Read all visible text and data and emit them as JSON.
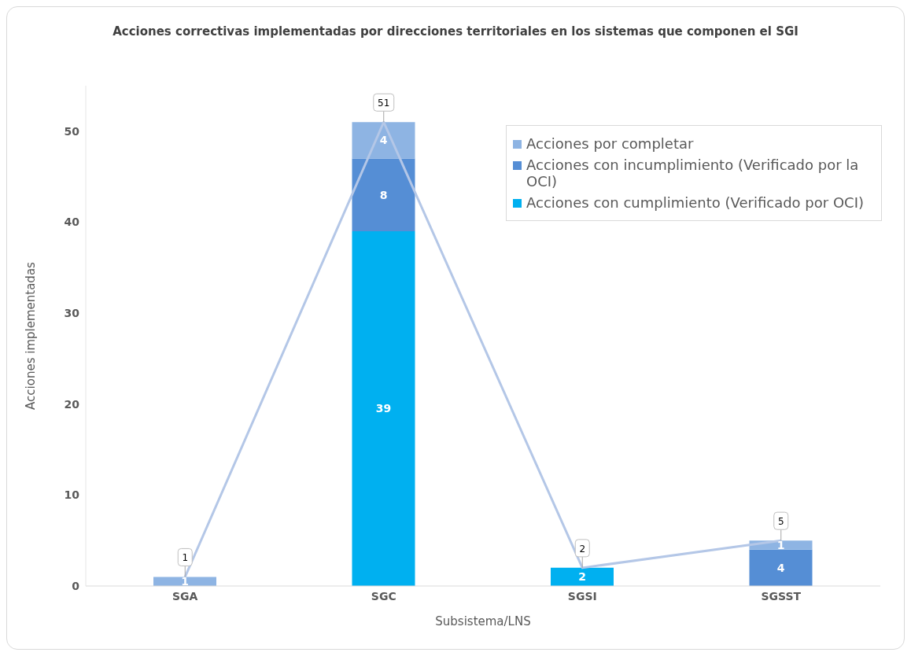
{
  "chart_data": {
    "type": "bar",
    "stacked": true,
    "title": "Acciones correctivas implementadas por direcciones territoriales en los sistemas que componen el SGI",
    "xlabel": "Subsistema/LNS",
    "ylabel": "Acciones implementadas",
    "categories": [
      "SGA",
      "SGC",
      "SGSI",
      "SGSST"
    ],
    "series": [
      {
        "name": "Acciones con cumplimiento (Verificado por OCI)",
        "color": "#00b0f0",
        "values": [
          null,
          39,
          2,
          null
        ]
      },
      {
        "name": "Acciones con incumplimiento (Verificado por la OCI)",
        "color": "#558ed5",
        "values": [
          null,
          8,
          null,
          4
        ]
      },
      {
        "name": "Acciones por completar",
        "color": "#8eb4e3",
        "values": [
          1,
          4,
          null,
          1
        ]
      },
      {
        "type": "line",
        "color": "#b4c7e7",
        "values": [
          1,
          51,
          2,
          5
        ]
      }
    ],
    "ylim": [
      0,
      55
    ],
    "yticks": [
      0,
      10,
      20,
      30,
      40,
      50
    ],
    "legend": "top right",
    "data_labels": true,
    "marker": "none"
  }
}
